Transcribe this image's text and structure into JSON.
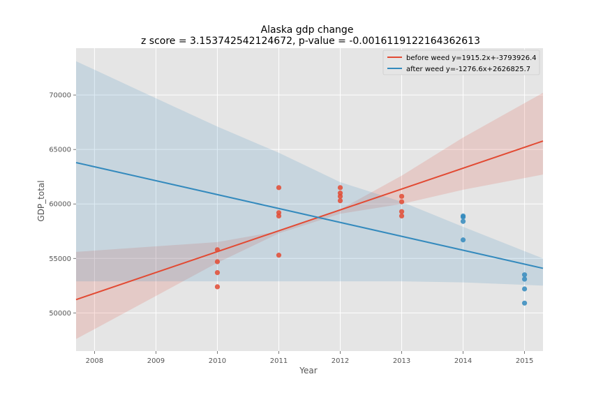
{
  "chart_data": {
    "type": "scatter",
    "title": "Alaska gdp change",
    "subtitle": "z score = 3.153742542124672, p-value = -0.0016119122164362613",
    "xlabel": "Year",
    "ylabel": "GDP_total",
    "xlim": [
      2007.7,
      2015.3
    ],
    "ylim": [
      46500,
      74300
    ],
    "xticks": [
      2008,
      2009,
      2010,
      2011,
      2012,
      2013,
      2014,
      2015
    ],
    "yticks": [
      50000,
      55000,
      60000,
      65000,
      70000
    ],
    "grid": true,
    "legend_position": "top-right",
    "colors": {
      "before": "#E24A33",
      "after": "#348ABD",
      "plot_background": "#E5E5E5",
      "grid": "#FFFFFF"
    },
    "series": [
      {
        "name": "before weed y=1915.2x+-3793926.4",
        "color": "#E24A33",
        "slope": 1915.2,
        "intercept": -3793926.4,
        "points": [
          [
            2010,
            55800
          ],
          [
            2010,
            54700
          ],
          [
            2010,
            53700
          ],
          [
            2010,
            52400
          ],
          [
            2011,
            61500
          ],
          [
            2011,
            59200
          ],
          [
            2011,
            58900
          ],
          [
            2011,
            55300
          ],
          [
            2012,
            61500
          ],
          [
            2012,
            61000
          ],
          [
            2012,
            60700
          ],
          [
            2012,
            60300
          ],
          [
            2013,
            60700
          ],
          [
            2013,
            60200
          ],
          [
            2013,
            59300
          ],
          [
            2013,
            58900
          ]
        ],
        "band": {
          "x": [
            2007.7,
            2010,
            2011,
            2012,
            2013,
            2014,
            2015.3
          ],
          "upper": [
            55600,
            56500,
            57500,
            59500,
            62600,
            66100,
            70200
          ],
          "lower": [
            47600,
            54600,
            57300,
            59100,
            60000,
            61300,
            62700
          ]
        }
      },
      {
        "name": "after weed y=-1276.6x+2626825.7",
        "color": "#348ABD",
        "slope": -1276.6,
        "intercept": 2626825.7,
        "points": [
          [
            2014,
            58900
          ],
          [
            2014,
            58800
          ],
          [
            2014,
            58400
          ],
          [
            2014,
            56700
          ],
          [
            2015,
            53500
          ],
          [
            2015,
            53100
          ],
          [
            2015,
            52200
          ],
          [
            2015,
            50900
          ]
        ],
        "band": {
          "x": [
            2007.7,
            2009,
            2010,
            2011,
            2012,
            2013,
            2014,
            2015.3
          ],
          "upper": [
            73100,
            69700,
            67100,
            64700,
            62000,
            60200,
            57900,
            55000
          ],
          "lower": [
            52900,
            52900,
            52900,
            52900,
            52900,
            52900,
            52800,
            52500
          ]
        }
      }
    ]
  }
}
